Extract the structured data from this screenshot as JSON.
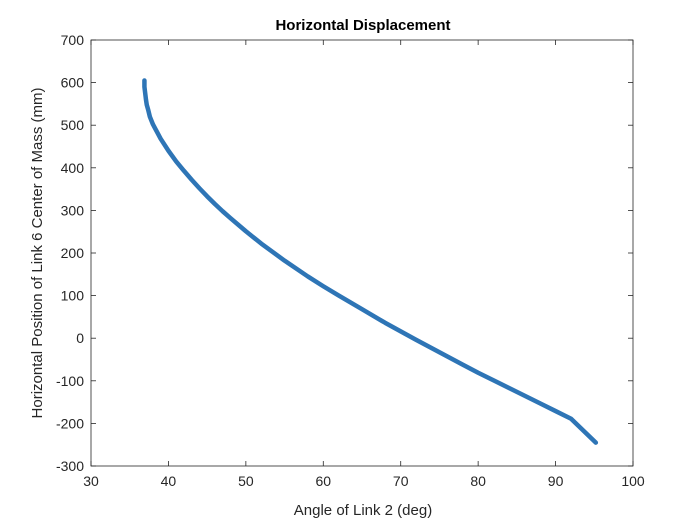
{
  "chart_data": {
    "type": "line",
    "title": "Horizontal Displacement",
    "xlabel": "Angle of Link 2 (deg)",
    "ylabel": "Horizontal Position of Link 6 Center of Mass (mm)",
    "xlim": [
      30,
      100
    ],
    "ylim": [
      -300,
      700
    ],
    "xticks": [
      30,
      40,
      50,
      60,
      70,
      80,
      90,
      100
    ],
    "yticks": [
      -300,
      -200,
      -100,
      0,
      100,
      200,
      300,
      400,
      500,
      600,
      700
    ],
    "grid": false,
    "line_color": "#2e75b6",
    "series": [
      {
        "x": [
          36.9,
          36.9,
          37.0,
          37.1,
          37.2,
          37.4,
          37.6,
          38.0,
          38.5,
          39.0,
          40.0,
          41.0,
          42.0,
          43.0,
          44.0,
          45.0,
          46.0,
          47.0,
          48.0,
          50.0,
          52.0,
          55.0,
          58.0,
          60.0,
          62.0,
          65.0,
          68.0,
          70.0,
          72.0,
          75.0,
          78.0,
          80.0,
          82.0,
          85.0,
          88.0,
          90.0,
          92.0,
          95.2
        ],
        "y": [
          605,
          590,
          575,
          560,
          548,
          535,
          520,
          502,
          485,
          468,
          440,
          415,
          393,
          372,
          352,
          333,
          315,
          298,
          282,
          251,
          222,
          182,
          145,
          122,
          100,
          68,
          36,
          16,
          -4,
          -33,
          -62,
          -81,
          -99,
          -126,
          -153,
          -171,
          -189,
          -245
        ]
      }
    ]
  }
}
